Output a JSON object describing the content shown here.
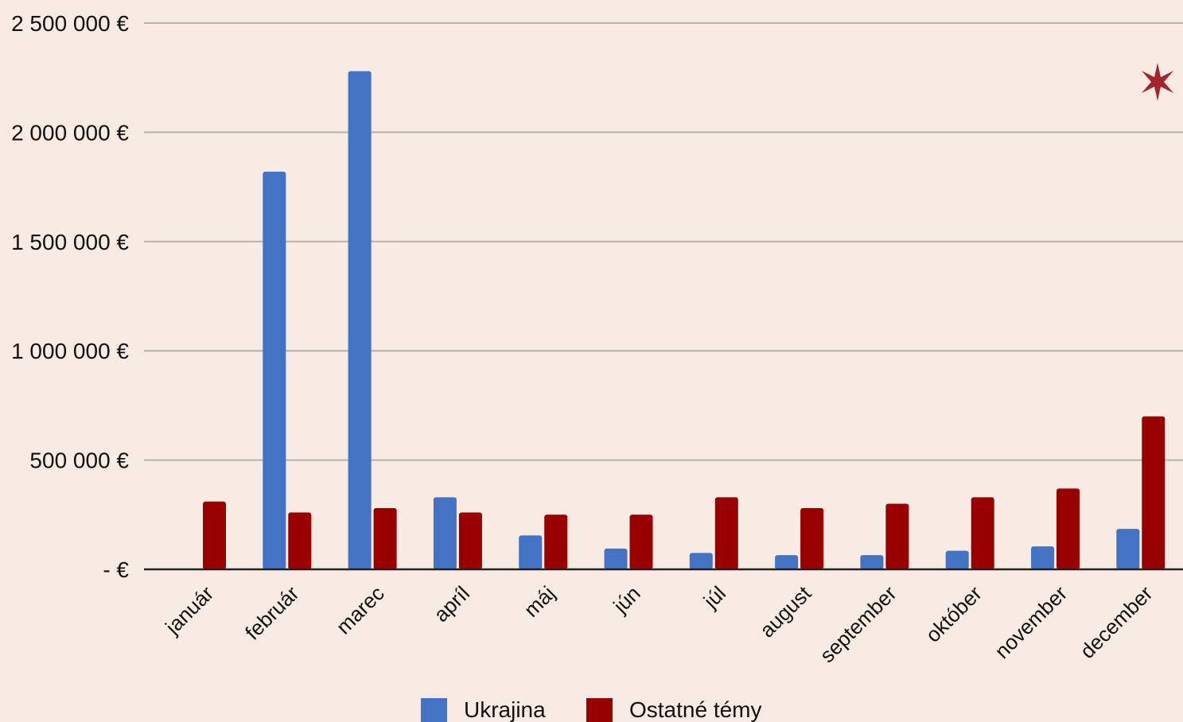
{
  "chart_data": {
    "type": "bar",
    "categories": [
      "január",
      "február",
      "marec",
      "apríl",
      "máj",
      "jún",
      "júl",
      "august",
      "september",
      "október",
      "november",
      "december"
    ],
    "series": [
      {
        "name": "Ukrajina",
        "color": "#4472c4",
        "values": [
          0,
          1820000,
          2280000,
          330000,
          155000,
          95000,
          75000,
          65000,
          65000,
          85000,
          105000,
          185000
        ]
      },
      {
        "name": "Ostatné témy",
        "color": "#990000",
        "values": [
          310000,
          260000,
          280000,
          260000,
          250000,
          250000,
          330000,
          280000,
          300000,
          330000,
          370000,
          700000
        ]
      }
    ],
    "ylim": [
      0,
      2500000
    ],
    "yticks": [
      {
        "value": 0,
        "label": "-  €"
      },
      {
        "value": 500000,
        "label": "500 000 €"
      },
      {
        "value": 1000000,
        "label": "1 000 000 €"
      },
      {
        "value": 1500000,
        "label": "1 500 000 €"
      },
      {
        "value": 2000000,
        "label": "2 000 000 €"
      },
      {
        "value": 2500000,
        "label": "2 500 000 €"
      }
    ],
    "grid": true,
    "legend_position": "bottom",
    "title": "",
    "xlabel": "",
    "ylabel": ""
  },
  "decoration": {
    "star_icon": "star-icon",
    "star_color": "#a3262c"
  }
}
